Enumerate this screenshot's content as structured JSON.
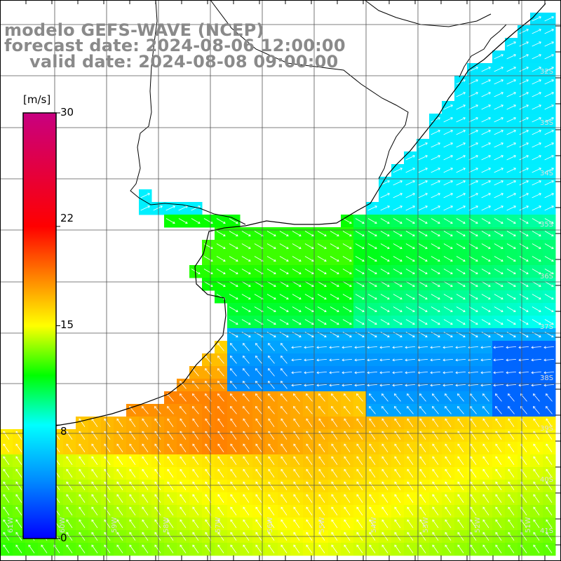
{
  "title": {
    "line1": "modelo GEFS-WAVE (NCEP)",
    "line2": "forecast date: 2024-08-06 12:00:00",
    "line3": "valid date: 2024-08-08 09:00:00"
  },
  "colorbar": {
    "unit": "[m/s]",
    "ticks": [
      "30",
      "22",
      "15",
      "8",
      "0"
    ],
    "stops": [
      {
        "v": 0,
        "color": "#0000ff"
      },
      {
        "v": 4,
        "color": "#0088ff"
      },
      {
        "v": 8,
        "color": "#00ffff"
      },
      {
        "v": 11.5,
        "color": "#00ff00"
      },
      {
        "v": 15,
        "color": "#ffff00"
      },
      {
        "v": 18.5,
        "color": "#ff8000"
      },
      {
        "v": 22,
        "color": "#ff0000"
      },
      {
        "v": 30,
        "color": "#c80080"
      }
    ]
  },
  "lat_labels": [
    "32S",
    "33S",
    "34S",
    "35S",
    "36S",
    "37S",
    "38S",
    "39S",
    "40S",
    "41S"
  ],
  "lon_labels": [
    "61W",
    "60W",
    "59W",
    "58W",
    "57W",
    "56W",
    "55W",
    "54W",
    "53W",
    "52W",
    "51W"
  ],
  "field_colors": {
    "land": "#ffffff",
    "coast": "#000000",
    "grid": "#555555",
    "arrow": "#ffffff"
  }
}
